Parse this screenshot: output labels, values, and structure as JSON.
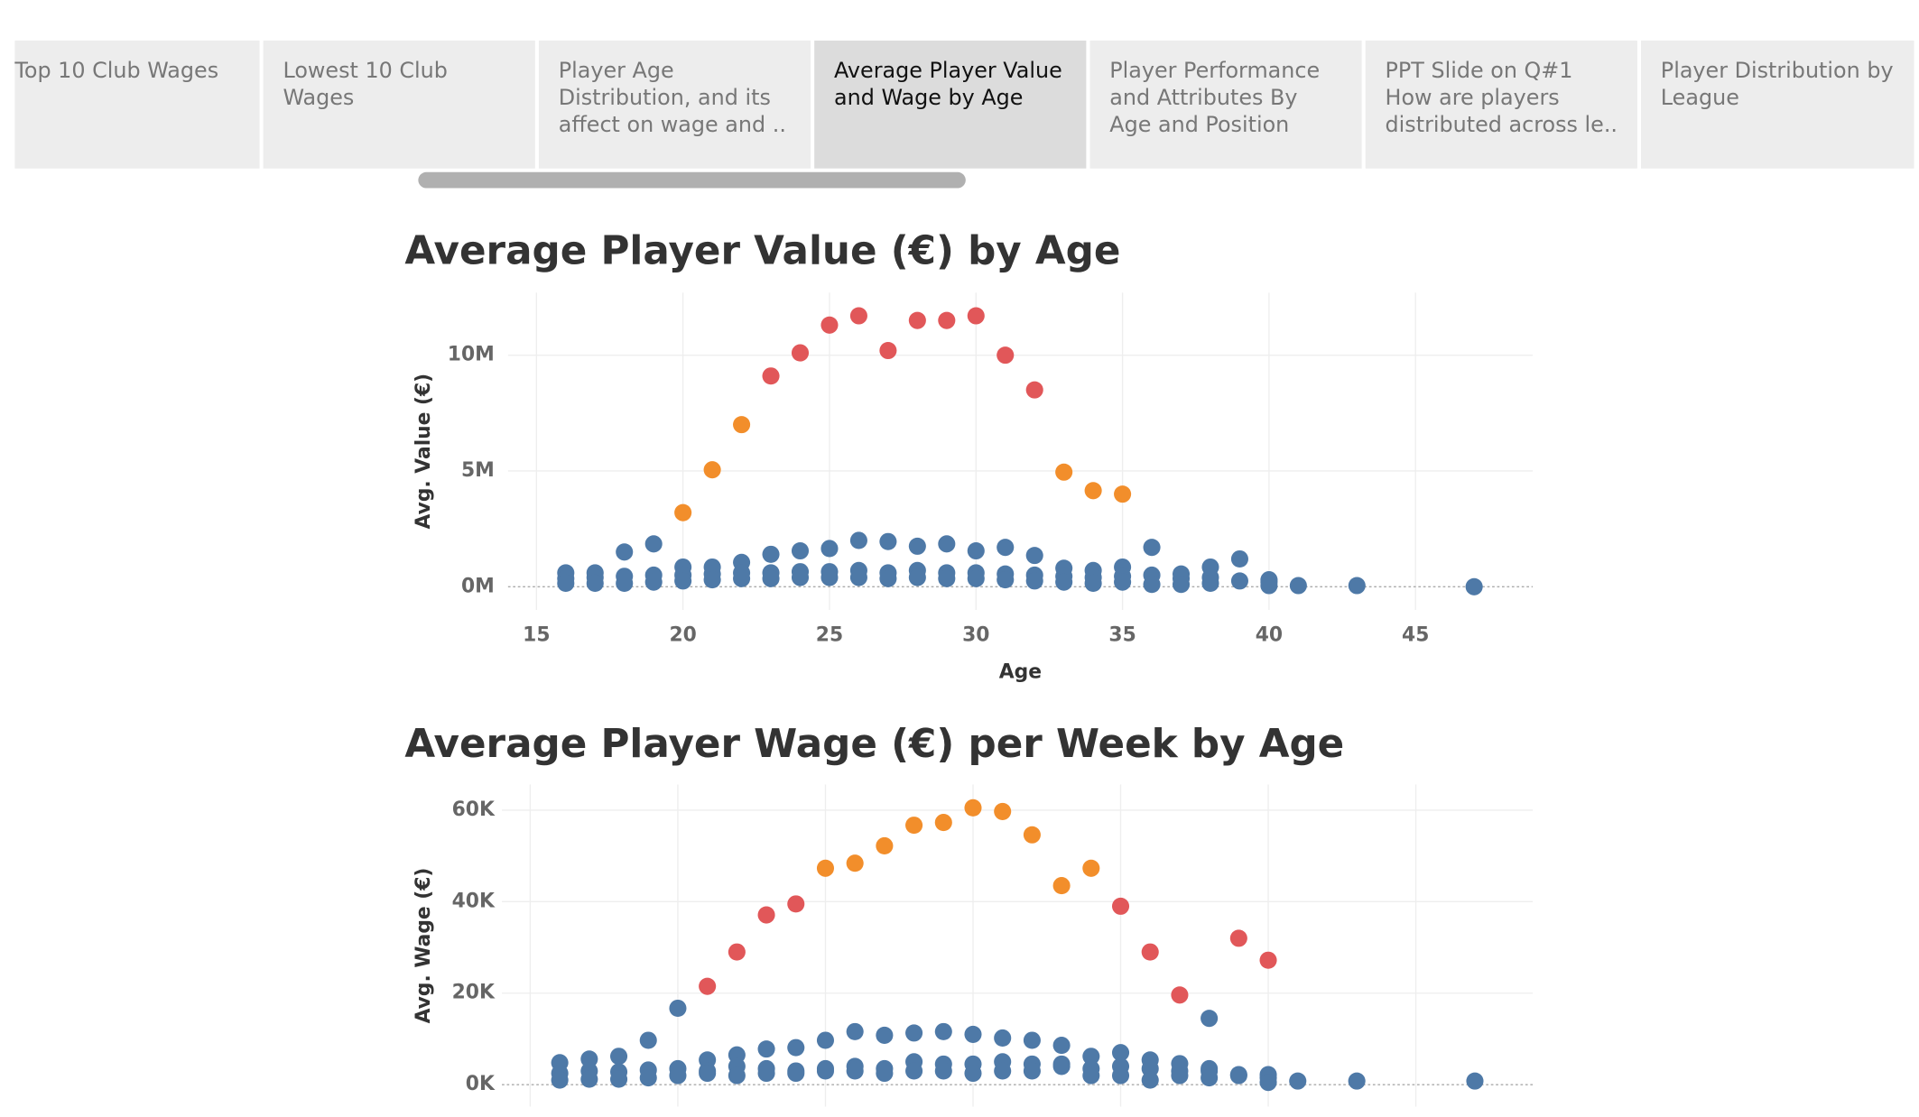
{
  "tabs": [
    "Top 10 Club Wages",
    "Lowest 10 Club Wages",
    "Player Age Distribution, and its affect on wage and ..",
    "Average Player Value and Wage by Age",
    "Player Performance and Attributes By Age and Position",
    "PPT Slide on Q#1 How are players distributed across le..",
    "Player Distribution by League"
  ],
  "chart_data": [
    {
      "type": "scatter",
      "title": "Average Player Value (€) by Age",
      "xlabel": "Age",
      "ylabel": "Avg. Value (€)",
      "xlim": [
        14.03,
        49.0
      ],
      "ylim": [
        -1000000,
        12700000
      ],
      "xticks": [
        15,
        20,
        25,
        30,
        35,
        40,
        45
      ],
      "yticks": [
        {
          "value": 0,
          "label": "0M"
        },
        {
          "value": 5000000,
          "label": "5M"
        },
        {
          "value": 10000000,
          "label": "10M"
        }
      ],
      "grid": true,
      "series": [
        {
          "color": "#4e79a7",
          "x": [
            16,
            17,
            18,
            19,
            20,
            21,
            22,
            23,
            24,
            25,
            26,
            27,
            28,
            29,
            30,
            31,
            32,
            33,
            34,
            35,
            36,
            37,
            38,
            39,
            40,
            41,
            43,
            47
          ],
          "values": [
            600000,
            600000,
            1500000,
            1850000,
            850000,
            850000,
            1050000,
            1400000,
            1550000,
            1650000,
            2000000,
            1950000,
            1750000,
            1850000,
            1550000,
            1700000,
            1350000,
            800000,
            700000,
            850000,
            1700000,
            550000,
            850000,
            1200000,
            300000,
            50000,
            50000,
            0
          ]
        },
        {
          "color": "#4e79a7",
          "x": [
            16,
            17,
            18,
            19,
            20,
            21,
            22,
            23,
            24,
            25,
            26,
            27,
            28,
            29,
            30,
            31,
            32,
            33,
            34,
            35,
            36,
            37,
            38,
            39,
            40
          ],
          "values": [
            350000,
            400000,
            450000,
            500000,
            500000,
            550000,
            600000,
            600000,
            650000,
            650000,
            700000,
            600000,
            700000,
            600000,
            600000,
            550000,
            500000,
            450000,
            400000,
            450000,
            500000,
            350000,
            400000,
            250000,
            200000
          ]
        },
        {
          "color": "#4e79a7",
          "x": [
            16,
            17,
            18,
            19,
            20,
            21,
            22,
            23,
            24,
            25,
            26,
            27,
            28,
            29,
            30,
            31,
            32,
            33,
            34,
            35,
            36,
            37,
            38,
            40
          ],
          "values": [
            150000,
            150000,
            150000,
            200000,
            250000,
            300000,
            350000,
            350000,
            400000,
            400000,
            400000,
            350000,
            400000,
            350000,
            350000,
            300000,
            250000,
            200000,
            150000,
            200000,
            100000,
            100000,
            150000,
            50000
          ]
        },
        {
          "color": "#f28e2b",
          "x": [
            20,
            21,
            22,
            33,
            34,
            35
          ],
          "values": [
            3200000,
            5050000,
            7000000,
            4950000,
            4150000,
            4000000
          ]
        },
        {
          "color": "#e15759",
          "x": [
            23,
            24,
            25,
            26,
            27,
            28,
            29,
            30,
            31,
            32
          ],
          "values": [
            9100000,
            10100000,
            11300000,
            11700000,
            10200000,
            11500000,
            11500000,
            11700000,
            10000000,
            8500000
          ]
        }
      ]
    },
    {
      "type": "scatter",
      "title": "Average Player Wage (€) per Week by Age",
      "ylabel": "Avg. Wage (€)",
      "xlim": [
        14.04,
        48.96
      ],
      "ylim": [
        -4800,
        65600
      ],
      "xticks": [
        15,
        20,
        25,
        30,
        35,
        40,
        45
      ],
      "yticks": [
        {
          "value": 0,
          "label": "0K"
        },
        {
          "value": 20000,
          "label": "20K"
        },
        {
          "value": 40000,
          "label": "40K"
        },
        {
          "value": 60000,
          "label": "60K"
        }
      ],
      "grid": true,
      "series": [
        {
          "color": "#4e79a7",
          "x": [
            16,
            17,
            18,
            19,
            20,
            21,
            22,
            23,
            24,
            25,
            26,
            27,
            28,
            29,
            30,
            31,
            32,
            33,
            34,
            35,
            36,
            37,
            38,
            38,
            39,
            40,
            41,
            43,
            47
          ],
          "values": [
            4800,
            5600,
            6200,
            9700,
            16700,
            5400,
            6500,
            7800,
            8100,
            9700,
            11600,
            10800,
            11300,
            11600,
            11000,
            10200,
            9700,
            8600,
            6200,
            7000,
            5400,
            4600,
            14500,
            3500,
            2200,
            2200,
            800,
            800,
            800
          ]
        },
        {
          "color": "#4e79a7",
          "x": [
            16,
            17,
            18,
            19,
            20,
            21,
            22,
            23,
            24,
            25,
            26,
            27,
            28,
            29,
            30,
            31,
            32,
            33,
            34,
            35,
            36,
            37,
            38,
            39,
            40
          ],
          "values": [
            2500,
            3000,
            2800,
            3200,
            3500,
            3000,
            4000,
            3500,
            3000,
            3500,
            4000,
            3500,
            5000,
            4500,
            4500,
            5000,
            4500,
            4500,
            3500,
            4000,
            3500,
            3000,
            3000,
            2000,
            1500
          ]
        },
        {
          "color": "#4e79a7",
          "x": [
            16,
            17,
            18,
            19,
            20,
            21,
            22,
            23,
            24,
            25,
            26,
            27,
            28,
            29,
            30,
            31,
            32,
            33,
            34,
            35,
            36,
            37,
            38,
            40
          ],
          "values": [
            1000,
            1200,
            1200,
            1500,
            2000,
            2500,
            2000,
            2500,
            2500,
            3000,
            3000,
            2500,
            3000,
            3000,
            2500,
            3000,
            3000,
            4000,
            2000,
            2000,
            1000,
            2000,
            1500,
            500
          ]
        },
        {
          "color": "#f28e2b",
          "x": [
            25,
            26,
            27,
            28,
            29,
            30,
            31,
            32,
            33,
            34
          ],
          "values": [
            47300,
            48400,
            52200,
            56700,
            57300,
            60500,
            59700,
            54600,
            43500,
            47300
          ]
        },
        {
          "color": "#e15759",
          "x": [
            21,
            22,
            23,
            24,
            35,
            36,
            37,
            39,
            40
          ],
          "values": [
            21500,
            29000,
            37100,
            39500,
            39000,
            29000,
            19600,
            32000,
            27200
          ]
        }
      ]
    }
  ]
}
